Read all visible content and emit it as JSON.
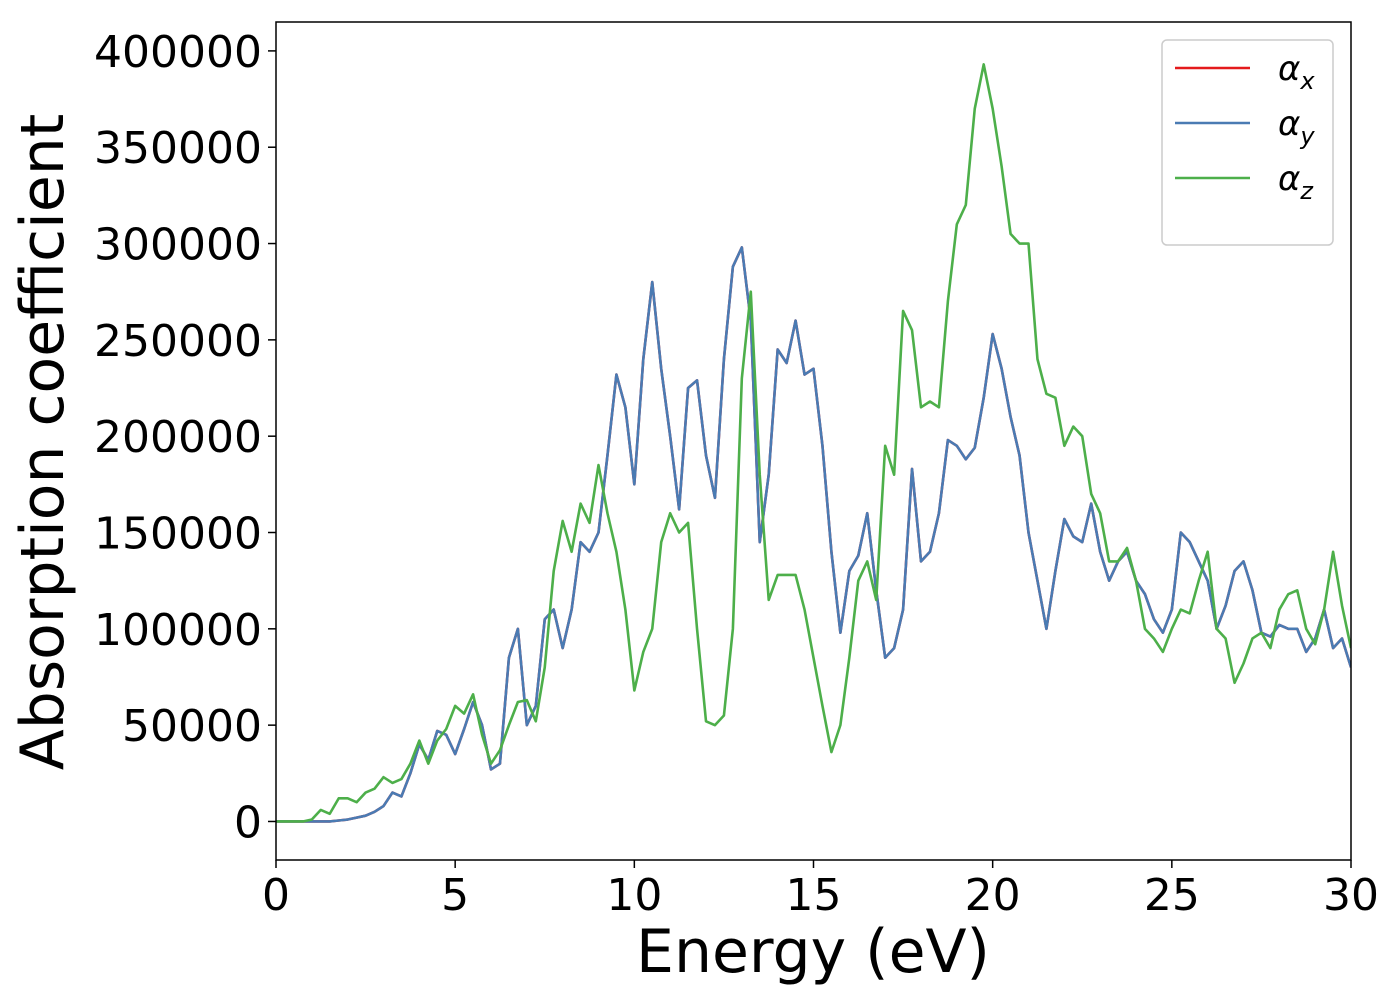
{
  "chart_data": {
    "type": "line",
    "xlabel": "Energy (eV)",
    "ylabel": "Absorption coefficient",
    "xlim": [
      0,
      30
    ],
    "ylim": [
      -20000,
      415000
    ],
    "xticks": [
      0,
      5,
      10,
      15,
      20,
      25,
      30
    ],
    "yticks": [
      0,
      50000,
      100000,
      150000,
      200000,
      250000,
      300000,
      350000,
      400000
    ],
    "legend": "upper right",
    "x": [
      0,
      0.25,
      0.5,
      0.75,
      1,
      1.25,
      1.5,
      1.75,
      2,
      2.25,
      2.5,
      2.75,
      3,
      3.25,
      3.5,
      3.75,
      4,
      4.25,
      4.5,
      4.75,
      5,
      5.25,
      5.5,
      5.75,
      6,
      6.25,
      6.5,
      6.75,
      7,
      7.25,
      7.5,
      7.75,
      8,
      8.25,
      8.5,
      8.75,
      9,
      9.25,
      9.5,
      9.75,
      10,
      10.25,
      10.5,
      10.75,
      11,
      11.25,
      11.5,
      11.75,
      12,
      12.25,
      12.5,
      12.75,
      13,
      13.25,
      13.5,
      13.75,
      14,
      14.25,
      14.5,
      14.75,
      15,
      15.25,
      15.5,
      15.75,
      16,
      16.25,
      16.5,
      16.75,
      17,
      17.25,
      17.5,
      17.75,
      18,
      18.25,
      18.5,
      18.75,
      19,
      19.25,
      19.5,
      19.75,
      20,
      20.25,
      20.5,
      20.75,
      21,
      21.25,
      21.5,
      21.75,
      22,
      22.25,
      22.5,
      22.75,
      23,
      23.25,
      23.5,
      23.75,
      24,
      24.25,
      24.5,
      24.75,
      25,
      25.25,
      25.5,
      25.75,
      26,
      26.25,
      26.5,
      26.75,
      27,
      27.25,
      27.5,
      27.75,
      28,
      28.25,
      28.5,
      28.75,
      29,
      29.25,
      29.5,
      29.75,
      30
    ],
    "series": [
      {
        "name": "αx",
        "color": "#e41a1c",
        "values": [
          0,
          0,
          0,
          0,
          0,
          0,
          0,
          500,
          1000,
          2000,
          3000,
          5000,
          8000,
          15000,
          13000,
          25000,
          40000,
          32000,
          47000,
          45000,
          35000,
          48000,
          62000,
          50000,
          27000,
          30000,
          85000,
          100000,
          50000,
          60000,
          105000,
          110000,
          90000,
          110000,
          145000,
          140000,
          150000,
          190000,
          232000,
          215000,
          175000,
          240000,
          280000,
          235000,
          200000,
          162000,
          225000,
          229000,
          190000,
          168000,
          240000,
          288000,
          298000,
          260000,
          145000,
          180000,
          245000,
          238000,
          260000,
          232000,
          235000,
          195000,
          140000,
          98000,
          130000,
          138000,
          160000,
          120000,
          85000,
          90000,
          110000,
          183000,
          135000,
          140000,
          160000,
          198000,
          195000,
          188000,
          194000,
          220000,
          253000,
          235000,
          210000,
          190000,
          150000,
          125000,
          100000,
          130000,
          157000,
          148000,
          145000,
          165000,
          140000,
          125000,
          135000,
          140000,
          125000,
          118000,
          105000,
          98000,
          110000,
          150000,
          145000,
          135000,
          125000,
          100000,
          112000,
          130000,
          135000,
          120000,
          98000,
          96000,
          102000,
          100000,
          100000,
          88000,
          95000,
          110000,
          90000,
          95000,
          80000
        ]
      },
      {
        "name": "αy",
        "color": "#4a7bb3",
        "values": [
          0,
          0,
          0,
          0,
          0,
          0,
          0,
          500,
          1000,
          2000,
          3000,
          5000,
          8000,
          15000,
          13000,
          25000,
          40000,
          32000,
          47000,
          45000,
          35000,
          48000,
          62000,
          50000,
          27000,
          30000,
          85000,
          100000,
          50000,
          60000,
          105000,
          110000,
          90000,
          110000,
          145000,
          140000,
          150000,
          190000,
          232000,
          215000,
          175000,
          240000,
          280000,
          235000,
          200000,
          162000,
          225000,
          229000,
          190000,
          168000,
          240000,
          288000,
          298000,
          260000,
          145000,
          180000,
          245000,
          238000,
          260000,
          232000,
          235000,
          195000,
          140000,
          98000,
          130000,
          138000,
          160000,
          120000,
          85000,
          90000,
          110000,
          183000,
          135000,
          140000,
          160000,
          198000,
          195000,
          188000,
          194000,
          220000,
          253000,
          235000,
          210000,
          190000,
          150000,
          125000,
          100000,
          130000,
          157000,
          148000,
          145000,
          165000,
          140000,
          125000,
          135000,
          140000,
          125000,
          118000,
          105000,
          98000,
          110000,
          150000,
          145000,
          135000,
          125000,
          100000,
          112000,
          130000,
          135000,
          120000,
          98000,
          96000,
          102000,
          100000,
          100000,
          88000,
          95000,
          110000,
          90000,
          95000,
          80000
        ]
      },
      {
        "name": "αz",
        "color": "#4daf4a",
        "values": [
          0,
          0,
          0,
          0,
          1000,
          6000,
          4000,
          12000,
          12000,
          10000,
          15000,
          17000,
          23000,
          20000,
          22000,
          30000,
          42000,
          30000,
          42000,
          48000,
          60000,
          56000,
          66000,
          45000,
          30000,
          37000,
          50000,
          62000,
          63000,
          52000,
          80000,
          130000,
          156000,
          140000,
          165000,
          155000,
          185000,
          160000,
          140000,
          110000,
          68000,
          88000,
          100000,
          145000,
          160000,
          150000,
          155000,
          100000,
          52000,
          50000,
          55000,
          100000,
          230000,
          275000,
          180000,
          115000,
          128000,
          128000,
          128000,
          110000,
          85000,
          60000,
          36000,
          50000,
          85000,
          125000,
          135000,
          115000,
          195000,
          180000,
          265000,
          255000,
          215000,
          218000,
          215000,
          270000,
          310000,
          320000,
          370000,
          393000,
          370000,
          340000,
          305000,
          300000,
          300000,
          240000,
          222000,
          220000,
          195000,
          205000,
          200000,
          170000,
          160000,
          135000,
          135000,
          142000,
          125000,
          100000,
          95000,
          88000,
          100000,
          110000,
          108000,
          125000,
          140000,
          100000,
          95000,
          72000,
          82000,
          95000,
          98000,
          90000,
          110000,
          118000,
          120000,
          100000,
          92000,
          110000,
          140000,
          112000,
          90000
        ]
      }
    ]
  }
}
